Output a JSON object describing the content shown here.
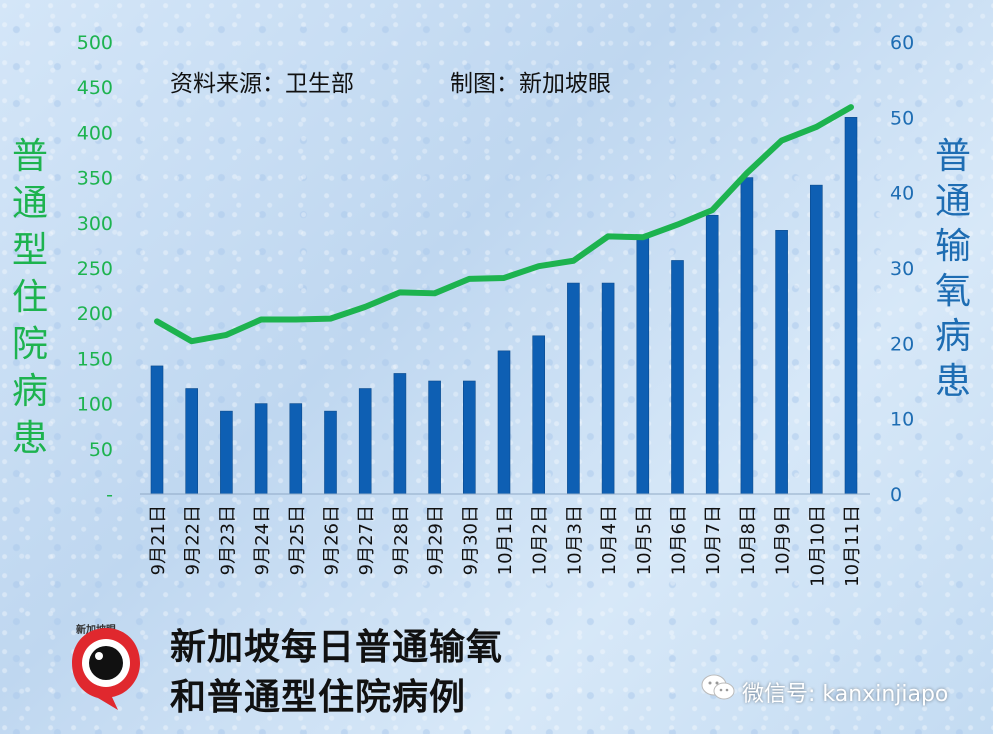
{
  "chart_data": {
    "type": "bar+line",
    "categories": [
      "9月21日",
      "9月22日",
      "9月23日",
      "9月24日",
      "9月25日",
      "9月26日",
      "9月27日",
      "9月28日",
      "9月29日",
      "9月30日",
      "10月1日",
      "10月2日",
      "10月3日",
      "10月4日",
      "10月5日",
      "10月6日",
      "10月7日",
      "10月8日",
      "10月9日",
      "10月10日",
      "10月11日"
    ],
    "series": [
      {
        "axis": "left",
        "chart": "line",
        "values": [
          191,
          169,
          176,
          193,
          193,
          194,
          207,
          223,
          222,
          238,
          239,
          252,
          258,
          285,
          284,
          298,
          314,
          355,
          391,
          406,
          428
        ]
      },
      {
        "axis": "right",
        "chart": "bar",
        "values": [
          17,
          14,
          11,
          12,
          12,
          11,
          14,
          16,
          15,
          15,
          19,
          21,
          28,
          28,
          34,
          31,
          37,
          42,
          35,
          41,
          50
        ]
      }
    ],
    "y_left": {
      "label": "普通型住院病患",
      "ticks": [
        "-",
        "50",
        "100",
        "150",
        "200",
        "250",
        "300",
        "350",
        "400",
        "450",
        "500"
      ],
      "range": [
        0,
        500
      ]
    },
    "y_right": {
      "label": "普通输氧病患",
      "ticks": [
        "0",
        "10",
        "20",
        "30",
        "40",
        "50",
        "60"
      ],
      "range": [
        0,
        60
      ]
    },
    "source_note": "资料来源：卫生部",
    "chart_by_note": "制图：新加坡眼",
    "colors": {
      "line": "#1db34f",
      "bar": "#0e5fb3",
      "left_axis": "#1db34f",
      "right_axis": "#1e6db3"
    }
  },
  "title_lines": [
    "新加坡每日普通输氧",
    "和普通型住院病例"
  ],
  "logo": {
    "text": "新加坡眼"
  },
  "watermark": {
    "text": "微信号: kanxinjiapo",
    "icon": "wechat-icon"
  }
}
